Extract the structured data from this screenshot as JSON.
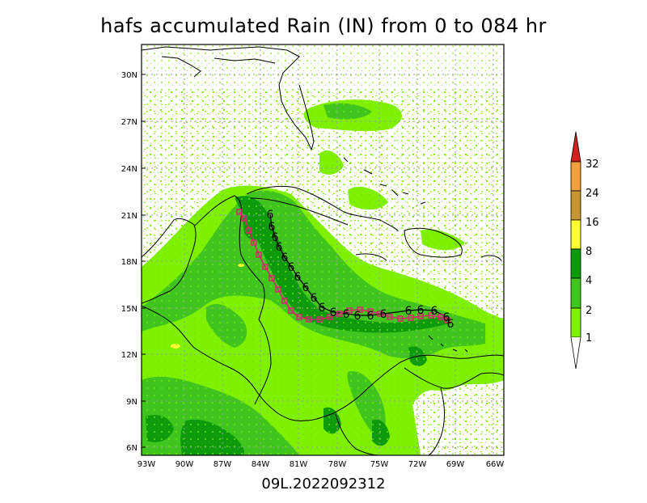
{
  "title": "hafs accumulated Rain (IN) from 0 to 084 hr",
  "subtitle": "09L.2022092312",
  "map": {
    "lat_labels": [
      "30N",
      "27N",
      "24N",
      "21N",
      "18N",
      "15N",
      "12N",
      "9N",
      "6N"
    ],
    "lon_labels": [
      "93W",
      "90W",
      "87W",
      "84W",
      "81W",
      "78W",
      "75W",
      "72W",
      "69W",
      "66W"
    ]
  },
  "legend": {
    "levels": [
      "1",
      "2",
      "4",
      "8",
      "16",
      "24",
      "32"
    ],
    "colors": [
      "#7ff000",
      "#3fc51d",
      "#0d9b0d",
      "#ffff33",
      "#c79633",
      "#f0a03d",
      "#d22020"
    ]
  },
  "track": {
    "storm_symbol": "6",
    "colors": {
      "forecast": "#000000",
      "observed": "#d9246e"
    }
  }
}
